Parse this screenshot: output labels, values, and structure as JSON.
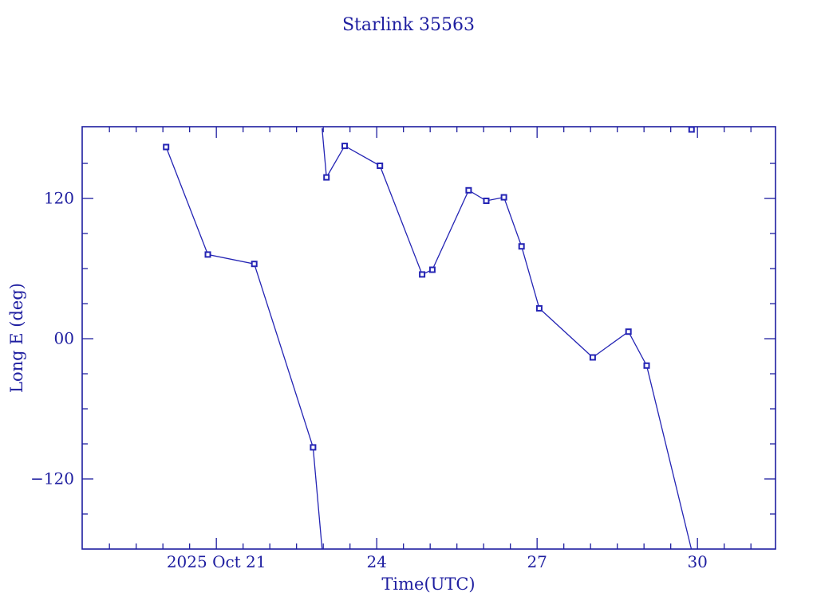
{
  "colors": {
    "background": "#ffffff",
    "ink": "#1e1ea0",
    "line": "#2424b4",
    "marker_fill": "#ffffff"
  },
  "chart_data": {
    "type": "line",
    "title": "Starlink 35563",
    "xlabel": "Time(UTC)",
    "ylabel": "Long E (deg)",
    "x_unit": "day of October 2025, UTC",
    "xlim": [
      18.49,
      31.46
    ],
    "ylim": [
      -180,
      181.4
    ],
    "x_major_ticks": [
      {
        "value": 21,
        "label": "2025 Oct 21"
      },
      {
        "value": 24,
        "label": "24"
      },
      {
        "value": 27,
        "label": "27"
      },
      {
        "value": 30,
        "label": "30"
      }
    ],
    "x_minor_step": 0.5,
    "y_major_ticks": [
      {
        "value": 120,
        "label": "120"
      },
      {
        "value": 0,
        "label": "00"
      },
      {
        "value": -120,
        "label": "−120"
      }
    ],
    "y_minor_step": 30,
    "grid": false,
    "legend": false,
    "wrap_at": 180,
    "series": [
      {
        "name": "Long E (deg)",
        "marker": "open-square",
        "points": [
          [
            20.06,
            164
          ],
          [
            20.84,
            72
          ],
          [
            21.71,
            64
          ],
          [
            22.81,
            -93
          ],
          [
            23.06,
            138
          ],
          [
            23.4,
            165
          ],
          [
            24.06,
            148
          ],
          [
            24.85,
            55
          ],
          [
            25.04,
            59
          ],
          [
            25.72,
            127
          ],
          [
            26.05,
            118
          ],
          [
            26.38,
            121
          ],
          [
            26.71,
            79
          ],
          [
            27.04,
            26
          ],
          [
            28.04,
            -16
          ],
          [
            28.71,
            6
          ],
          [
            29.05,
            -23
          ],
          [
            29.89,
            179
          ]
        ]
      }
    ]
  }
}
